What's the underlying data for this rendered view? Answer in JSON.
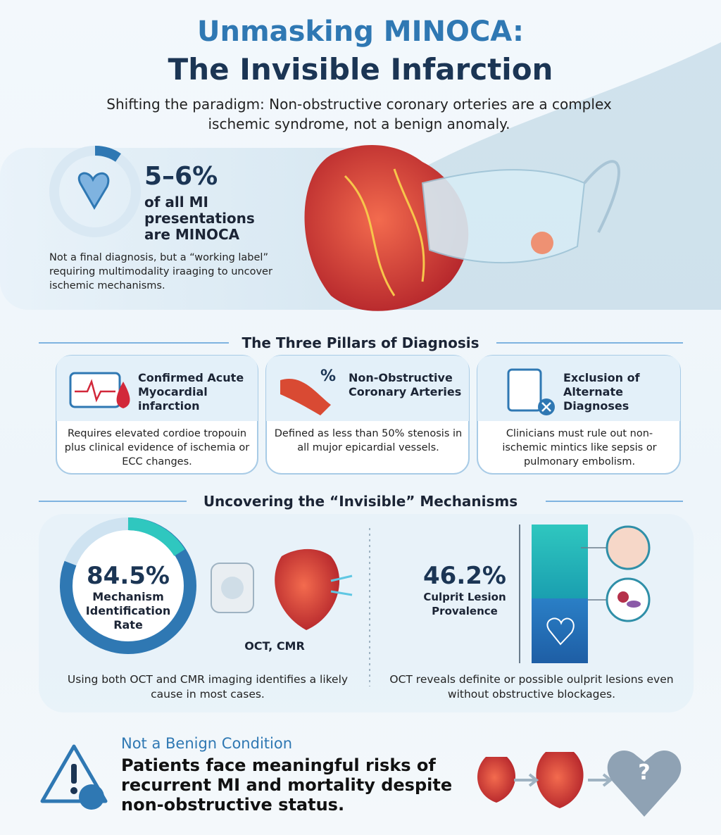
{
  "header": {
    "title_line1": "Unmasking MINOCA:",
    "title_line2": "The Invisible Infarction",
    "subtitle": "Shifting the paradigm: Non-obstructive coronary orteries are a complex ischemic syndrome, not a benign anomaly."
  },
  "stat": {
    "value": "5–6%",
    "label": "of all MI presentations are MINOCA",
    "note": "Not a final diagnosis, but a “working label” requiring multimodality iraaging to uncover ischemic mechanisms."
  },
  "pillars": {
    "title": "The Three Pillars of Diagnosis",
    "items": [
      {
        "title": "Confirmed Acute Myocardial infarction",
        "text": "Requires elevated cordioe tropouin plus clinical evidence of ischemia or ECC changes."
      },
      {
        "icon_text": "%",
        "title": "Non-Obstructive Coronary Arteries",
        "text": "Defined as less than 50% stenosis in all mujor epicardial vessels."
      },
      {
        "title": "Exclusion of Alternate Diagnoses",
        "text": "Clinicians must rule out non-ischemic mintics like sepsis or pulmonary embolism."
      }
    ]
  },
  "mechanisms": {
    "title": "Uncovering the “Invisible” Mechanisms",
    "left": {
      "value": "84.5%",
      "label": "Mechanism Identification Rate",
      "modality": "OCT, CMR",
      "text": "Using both OCT and CMR imaging identifies a likely cause in most cases."
    },
    "right": {
      "value": "46.2%",
      "label": "Culprit Lesion Provalence",
      "text": "OCT reveals definite or possible oulprit lesions even without obstructive blockages."
    }
  },
  "risk": {
    "heading": "Not a Benign Condition",
    "text": "Patients face meaningful risks of recurrent MI and mortality despite non-obstructive status.",
    "icon_text": "?"
  }
}
